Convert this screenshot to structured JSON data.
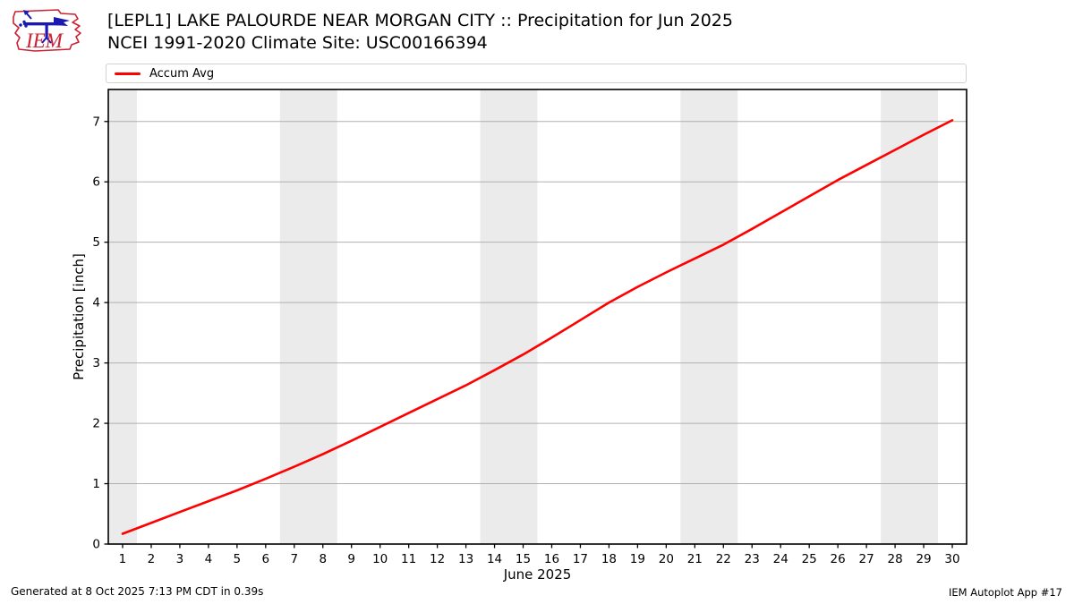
{
  "header": {
    "title": "[LEPL1] LAKE PALOURDE NEAR MORGAN CITY :: Precipitation for Jun 2025",
    "subtitle": "NCEI 1991-2020 Climate Site: USC00166394",
    "logo_text": "IEM"
  },
  "legend": {
    "items": [
      {
        "label": "Accum Avg",
        "color": "#ff0000"
      }
    ]
  },
  "footer": {
    "generated": "Generated at 8 Oct 2025 7:13 PM CDT in 0.39s",
    "credit": "IEM Autoplot App #17"
  },
  "colors": {
    "series": "#ff0000",
    "weekend_band": "#ebebeb",
    "gridline": "#b0b0b0",
    "axis": "#000000",
    "tick_text": "#000000",
    "logo_red": "#cc2233",
    "logo_blue": "#1a1ab3"
  },
  "chart_data": {
    "type": "line",
    "title": "[LEPL1] LAKE PALOURDE NEAR MORGAN CITY :: Precipitation for Jun 2025",
    "subtitle": "NCEI 1991-2020 Climate Site: USC00166394",
    "xlabel": "June 2025",
    "ylabel": "Precipitation [inch]",
    "xlim": [
      0.5,
      30.5
    ],
    "ylim": [
      0,
      7.53
    ],
    "xticks": [
      1,
      2,
      3,
      4,
      5,
      6,
      7,
      8,
      9,
      10,
      11,
      12,
      13,
      14,
      15,
      16,
      17,
      18,
      19,
      20,
      21,
      22,
      23,
      24,
      25,
      26,
      27,
      28,
      29,
      30
    ],
    "yticks": [
      0,
      1,
      2,
      3,
      4,
      5,
      6,
      7
    ],
    "grid": "horizontal",
    "legend_position": "top",
    "weekend_bands": [
      [
        0.5,
        1.5
      ],
      [
        6.5,
        8.5
      ],
      [
        13.5,
        15.5
      ],
      [
        20.5,
        22.5
      ],
      [
        27.5,
        29.5
      ]
    ],
    "series": [
      {
        "name": "Accum Avg",
        "color": "#ff0000",
        "x": [
          1,
          2,
          3,
          4,
          5,
          6,
          7,
          8,
          9,
          10,
          11,
          12,
          13,
          14,
          15,
          16,
          17,
          18,
          19,
          20,
          21,
          22,
          23,
          24,
          25,
          26,
          27,
          28,
          29,
          30
        ],
        "y": [
          0.17,
          0.35,
          0.53,
          0.71,
          0.89,
          1.08,
          1.28,
          1.49,
          1.71,
          1.94,
          2.17,
          2.4,
          2.63,
          2.88,
          3.14,
          3.42,
          3.71,
          4.0,
          4.26,
          4.5,
          4.73,
          4.96,
          5.22,
          5.49,
          5.76,
          6.03,
          6.28,
          6.53,
          6.78,
          7.02
        ]
      }
    ]
  }
}
